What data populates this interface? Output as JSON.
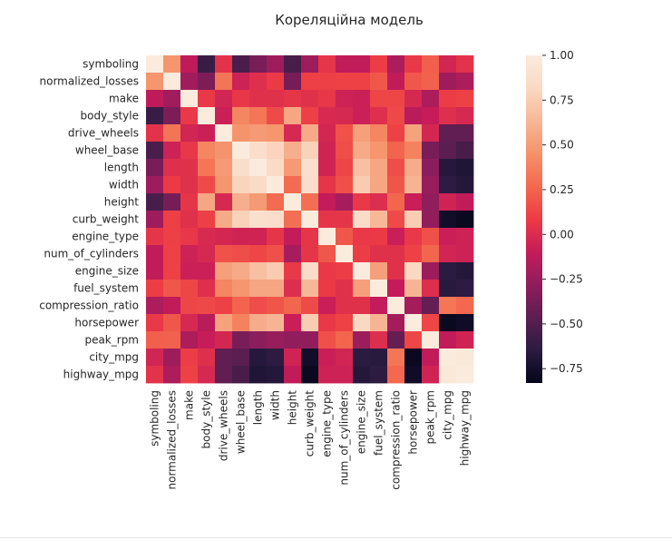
{
  "chart_data": {
    "type": "heatmap",
    "title": "Кореляційна модель",
    "variables": [
      "symboling",
      "normalized_losses",
      "make",
      "body_style",
      "drive_wheels",
      "wheel_base",
      "length",
      "width",
      "height",
      "curb_weight",
      "engine_type",
      "num_of_cylinders",
      "engine_size",
      "fuel_system",
      "compression_ratio",
      "horsepower",
      "peak_rpm",
      "city_mpg",
      "highway_mpg"
    ],
    "matrix": [
      [
        1.0,
        0.47,
        -0.12,
        -0.6,
        0.04,
        -0.53,
        -0.36,
        -0.23,
        -0.54,
        -0.23,
        0.05,
        -0.11,
        -0.11,
        0.09,
        -0.18,
        0.07,
        0.23,
        -0.04,
        0.04
      ],
      [
        0.47,
        1.0,
        -0.22,
        -0.35,
        0.32,
        -0.06,
        0.02,
        0.08,
        -0.37,
        0.1,
        0.1,
        0.11,
        0.11,
        0.2,
        -0.11,
        0.2,
        0.24,
        -0.23,
        -0.18
      ],
      [
        -0.12,
        -0.22,
        1.0,
        0.07,
        -0.04,
        0.06,
        0.03,
        0.03,
        0.05,
        0.03,
        0.06,
        -0.06,
        -0.07,
        0.13,
        0.13,
        -0.02,
        -0.18,
        0.09,
        0.11
      ],
      [
        -0.6,
        -0.35,
        0.07,
        1.0,
        -0.07,
        0.4,
        0.33,
        0.15,
        0.55,
        0.1,
        -0.01,
        -0.02,
        -0.07,
        0.02,
        0.14,
        -0.14,
        -0.09,
        0.02,
        -0.02
      ],
      [
        0.04,
        0.32,
        -0.04,
        -0.07,
        1.0,
        0.46,
        0.49,
        0.47,
        -0.02,
        0.57,
        -0.03,
        0.18,
        0.52,
        0.4,
        0.11,
        0.53,
        -0.03,
        -0.45,
        -0.45
      ],
      [
        -0.53,
        -0.06,
        0.06,
        0.4,
        0.46,
        1.0,
        0.87,
        0.79,
        0.59,
        0.78,
        -0.05,
        0.16,
        0.57,
        0.47,
        0.25,
        0.38,
        -0.36,
        -0.47,
        -0.54
      ],
      [
        -0.36,
        0.02,
        0.03,
        0.33,
        0.49,
        0.87,
        1.0,
        0.84,
        0.49,
        0.88,
        -0.05,
        0.13,
        0.68,
        0.55,
        0.16,
        0.58,
        -0.29,
        -0.67,
        -0.7
      ],
      [
        -0.23,
        0.08,
        0.03,
        0.15,
        0.47,
        0.79,
        0.84,
        1.0,
        0.28,
        0.87,
        0.05,
        0.17,
        0.74,
        0.55,
        0.19,
        0.62,
        -0.25,
        -0.64,
        -0.68
      ],
      [
        -0.54,
        -0.37,
        0.05,
        0.55,
        -0.02,
        0.59,
        0.49,
        0.28,
        1.0,
        0.3,
        -0.1,
        -0.2,
        0.07,
        0.01,
        0.26,
        -0.08,
        -0.27,
        -0.05,
        -0.11
      ],
      [
        -0.23,
        0.1,
        0.03,
        0.1,
        0.57,
        0.78,
        0.88,
        0.87,
        0.3,
        1.0,
        0.05,
        0.05,
        0.85,
        0.64,
        0.15,
        0.75,
        -0.27,
        -0.76,
        -0.8
      ],
      [
        0.05,
        0.1,
        0.06,
        -0.01,
        -0.03,
        -0.05,
        -0.05,
        0.05,
        -0.1,
        0.05,
        1.0,
        0.2,
        0.07,
        0.08,
        -0.08,
        0.07,
        0.17,
        -0.08,
        -0.06
      ],
      [
        -0.11,
        0.11,
        -0.06,
        -0.02,
        0.18,
        0.16,
        0.13,
        0.17,
        -0.2,
        0.05,
        0.2,
        1.0,
        0.09,
        0.03,
        0.03,
        0.11,
        0.26,
        -0.04,
        -0.06
      ],
      [
        -0.11,
        0.11,
        -0.07,
        -0.07,
        0.52,
        0.57,
        0.68,
        0.74,
        0.07,
        0.85,
        0.07,
        0.09,
        1.0,
        0.52,
        0.03,
        0.81,
        -0.24,
        -0.65,
        -0.68
      ],
      [
        0.09,
        0.2,
        0.13,
        0.02,
        0.4,
        0.47,
        0.55,
        0.55,
        0.01,
        0.64,
        0.08,
        0.03,
        0.52,
        1.0,
        -0.1,
        0.62,
        0.01,
        -0.66,
        -0.64
      ],
      [
        -0.18,
        -0.11,
        0.13,
        0.14,
        0.11,
        0.25,
        0.16,
        0.19,
        0.26,
        0.15,
        -0.08,
        0.03,
        0.03,
        -0.1,
        1.0,
        -0.21,
        -0.43,
        0.33,
        0.27
      ],
      [
        0.07,
        0.2,
        -0.02,
        -0.14,
        0.53,
        0.38,
        0.58,
        0.62,
        -0.08,
        0.75,
        0.07,
        0.11,
        0.81,
        0.62,
        -0.21,
        1.0,
        0.13,
        -0.8,
        -0.77
      ],
      [
        0.23,
        0.24,
        -0.18,
        -0.09,
        -0.03,
        -0.36,
        -0.29,
        -0.25,
        -0.27,
        -0.27,
        0.17,
        0.26,
        -0.24,
        0.01,
        -0.43,
        0.13,
        1.0,
        -0.11,
        -0.05
      ],
      [
        -0.04,
        -0.23,
        0.09,
        0.02,
        -0.45,
        -0.47,
        -0.67,
        -0.64,
        -0.05,
        -0.76,
        -0.08,
        -0.04,
        -0.65,
        -0.66,
        0.33,
        -0.8,
        -0.11,
        1.0,
        0.97
      ],
      [
        0.04,
        -0.18,
        0.11,
        -0.02,
        -0.45,
        -0.54,
        -0.7,
        -0.68,
        -0.11,
        -0.8,
        -0.06,
        -0.06,
        -0.68,
        -0.64,
        0.27,
        -0.77,
        -0.05,
        0.97,
        1.0
      ]
    ],
    "colorbar": {
      "vmin": -0.83,
      "vmax": 1.0,
      "ticks": [
        1.0,
        0.75,
        0.5,
        0.25,
        0.0,
        -0.25,
        -0.5,
        -0.75
      ],
      "tick_labels": [
        "1.00",
        "0.75",
        "0.50",
        "0.25",
        "0.00",
        "−0.25",
        "−0.50",
        "−0.75"
      ],
      "colormap": "rocket",
      "colors": [
        "#03051a",
        "#2b1b41",
        "#5c1e51",
        "#8f1d5d",
        "#c51b5a",
        "#ec3b45",
        "#f3684e",
        "#f5926a",
        "#f7b797",
        "#fad9c3",
        "#faebdd"
      ]
    },
    "grid": false
  }
}
